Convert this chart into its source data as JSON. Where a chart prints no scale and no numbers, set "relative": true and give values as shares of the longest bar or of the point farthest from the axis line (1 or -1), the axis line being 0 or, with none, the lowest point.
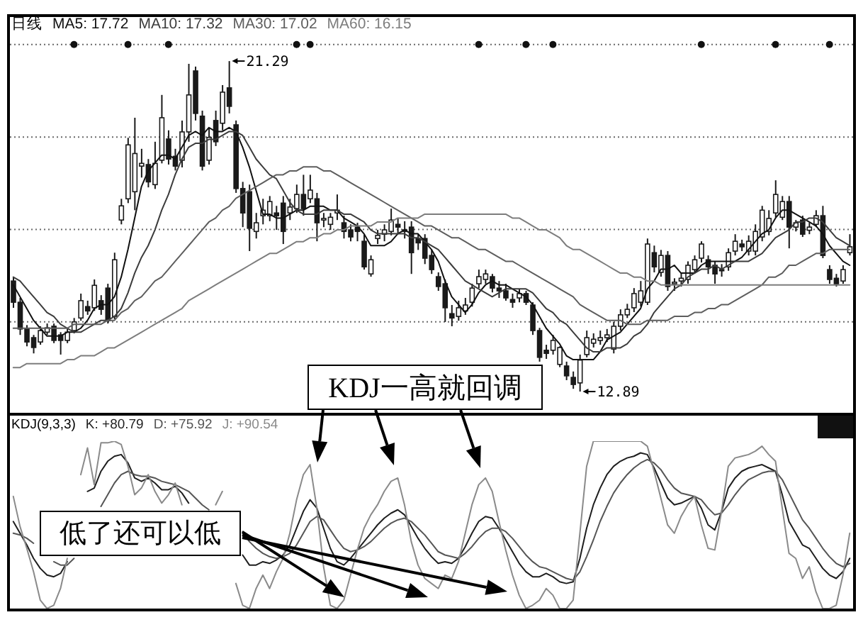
{
  "chart_data": [
    {
      "type": "candlestick",
      "title": "日线",
      "categories": [
        null,
        null,
        null,
        null,
        null,
        null,
        null,
        null,
        null,
        null,
        null,
        null,
        null,
        null,
        null,
        null,
        null,
        null,
        null,
        null,
        null,
        null,
        null,
        null,
        null,
        null,
        null,
        null,
        null,
        null,
        null,
        null,
        null,
        null,
        null,
        null,
        null,
        null,
        null,
        null,
        null,
        null,
        null,
        null,
        null,
        null,
        null,
        null,
        null,
        null,
        null,
        null,
        null,
        null,
        null,
        null,
        null,
        null,
        null,
        null,
        null,
        null,
        null,
        null,
        null,
        null,
        null,
        null,
        null,
        null,
        null,
        null,
        null,
        null,
        null,
        null,
        null,
        null,
        null,
        null,
        null,
        null,
        null,
        null,
        null,
        null,
        null,
        null,
        null,
        null,
        null,
        null,
        null,
        null,
        null,
        null,
        null,
        null,
        null,
        null,
        null,
        null,
        null,
        null,
        null,
        null,
        null,
        null,
        null,
        null,
        null,
        null,
        null,
        null,
        null,
        null,
        null,
        null,
        null,
        null,
        null,
        null,
        null,
        null,
        null
      ],
      "ohlc": [
        [
          15.7,
          15.81,
          15.02,
          15.16
        ],
        [
          15.16,
          15.27,
          14.33,
          14.48
        ],
        [
          14.48,
          14.58,
          14.04,
          14.15
        ],
        [
          14.26,
          14.33,
          13.86,
          14.01
        ],
        [
          14.15,
          14.55,
          14.08,
          14.44
        ],
        [
          14.4,
          14.62,
          14.33,
          14.51
        ],
        [
          14.55,
          14.62,
          14.12,
          14.19
        ],
        [
          14.33,
          14.4,
          13.83,
          14.19
        ],
        [
          14.19,
          14.51,
          14.12,
          14.4
        ],
        [
          14.44,
          14.76,
          14.37,
          14.66
        ],
        [
          14.76,
          15.38,
          14.69,
          15.2
        ],
        [
          15.05,
          15.2,
          14.84,
          14.94
        ],
        [
          15.02,
          15.74,
          14.94,
          15.59
        ],
        [
          15.2,
          15.34,
          14.84,
          14.98
        ],
        [
          15.52,
          15.63,
          14.62,
          14.69
        ],
        [
          14.8,
          16.42,
          14.73,
          16.24
        ],
        [
          17.25,
          17.79,
          17.14,
          17.61
        ],
        [
          17.79,
          19.34,
          17.68,
          19.16
        ],
        [
          17.97,
          19.85,
          17.5,
          18.94
        ],
        [
          18.62,
          19.06,
          18.33,
          18.69
        ],
        [
          18.66,
          18.8,
          18.08,
          18.22
        ],
        [
          18.15,
          19.24,
          18.04,
          18.69
        ],
        [
          18.77,
          20.43,
          18.69,
          19.85
        ],
        [
          19.31,
          19.53,
          18.66,
          18.8
        ],
        [
          18.87,
          19.06,
          18.51,
          18.62
        ],
        [
          18.77,
          19.78,
          18.59,
          19.49
        ],
        [
          19.49,
          21.22,
          19.24,
          20.43
        ],
        [
          21.04,
          21.15,
          19.78,
          19.96
        ],
        [
          19.89,
          20.03,
          18.51,
          18.62
        ],
        [
          18.77,
          19.6,
          18.66,
          19.35
        ],
        [
          19.78,
          20.03,
          19.13,
          19.24
        ],
        [
          19.71,
          20.68,
          19.53,
          20.5
        ],
        [
          20.61,
          21.29,
          19.96,
          20.14
        ],
        [
          19.67,
          19.78,
          17.94,
          18.05
        ],
        [
          18.05,
          18.22,
          17.07,
          17.43
        ],
        [
          17.97,
          18.15,
          16.46,
          17.04
        ],
        [
          16.96,
          17.43,
          16.78,
          17.18
        ],
        [
          17.36,
          17.79,
          17.14,
          17.5
        ],
        [
          17.36,
          17.86,
          17.22,
          17.72
        ],
        [
          17.43,
          17.61,
          17.0,
          17.36
        ],
        [
          17.68,
          17.86,
          16.64,
          16.96
        ],
        [
          17.43,
          17.79,
          17.25,
          17.58
        ],
        [
          17.54,
          18.15,
          17.43,
          17.9
        ],
        [
          17.9,
          18.4,
          17.36,
          17.54
        ],
        [
          17.79,
          18.4,
          17.68,
          18.01
        ],
        [
          17.79,
          17.94,
          16.71,
          17.18
        ],
        [
          17.25,
          17.43,
          17.07,
          17.29
        ],
        [
          17.14,
          17.43,
          17.0,
          17.32
        ],
        [
          17.43,
          17.9,
          17.25,
          17.5
        ],
        [
          17.18,
          17.36,
          16.78,
          16.96
        ],
        [
          17.0,
          17.14,
          16.71,
          16.82
        ],
        [
          17.07,
          17.18,
          16.71,
          16.96
        ],
        [
          16.71,
          16.89,
          15.99,
          16.06
        ],
        [
          15.88,
          16.35,
          15.81,
          16.24
        ],
        [
          16.78,
          17.0,
          16.64,
          16.86
        ],
        [
          16.89,
          17.14,
          16.71,
          17.0
        ],
        [
          16.96,
          17.54,
          16.86,
          17.25
        ],
        [
          17.14,
          17.29,
          16.89,
          17.07
        ],
        [
          17.0,
          17.22,
          16.78,
          16.96
        ],
        [
          17.07,
          17.22,
          15.88,
          16.42
        ],
        [
          16.78,
          16.89,
          16.49,
          16.67
        ],
        [
          16.78,
          16.89,
          16.13,
          16.28
        ],
        [
          16.35,
          16.49,
          15.88,
          15.99
        ],
        [
          15.81,
          15.92,
          15.45,
          15.56
        ],
        [
          15.63,
          15.74,
          14.66,
          15.02
        ],
        [
          14.87,
          15.09,
          14.55,
          14.76
        ],
        [
          14.8,
          15.2,
          14.69,
          15.02
        ],
        [
          14.94,
          15.27,
          14.84,
          15.09
        ],
        [
          15.16,
          15.63,
          15.05,
          15.52
        ],
        [
          15.63,
          15.99,
          15.52,
          15.81
        ],
        [
          15.74,
          15.99,
          15.63,
          15.88
        ],
        [
          15.81,
          15.88,
          15.41,
          15.52
        ],
        [
          15.52,
          15.7,
          15.27,
          15.45
        ],
        [
          15.45,
          15.63,
          15.2,
          15.27
        ],
        [
          15.23,
          15.38,
          15.02,
          15.16
        ],
        [
          15.27,
          15.49,
          15.16,
          15.38
        ],
        [
          15.38,
          15.45,
          15.09,
          15.16
        ],
        [
          15.09,
          15.16,
          14.33,
          14.44
        ],
        [
          14.44,
          14.51,
          13.65,
          13.76
        ],
        [
          13.94,
          14.08,
          13.72,
          13.86
        ],
        [
          13.94,
          14.33,
          13.83,
          14.19
        ],
        [
          13.58,
          14.04,
          13.51,
          14.01
        ],
        [
          13.54,
          13.65,
          13.18,
          13.29
        ],
        [
          13.25,
          13.4,
          12.96,
          13.07
        ],
        [
          13.11,
          13.83,
          12.89,
          13.69
        ],
        [
          13.83,
          14.44,
          13.76,
          14.26
        ],
        [
          14.12,
          14.37,
          14.01,
          14.22
        ],
        [
          14.19,
          14.44,
          14.08,
          14.26
        ],
        [
          14.26,
          14.48,
          14.15,
          14.33
        ],
        [
          13.97,
          14.66,
          13.86,
          14.55
        ],
        [
          14.55,
          14.98,
          14.44,
          14.84
        ],
        [
          14.84,
          15.12,
          14.76,
          14.98
        ],
        [
          15.02,
          15.52,
          14.91,
          15.38
        ],
        [
          15.16,
          15.7,
          15.05,
          15.45
        ],
        [
          15.16,
          16.78,
          15.09,
          16.64
        ],
        [
          16.42,
          16.6,
          15.92,
          16.06
        ],
        [
          15.92,
          16.49,
          15.81,
          16.35
        ],
        [
          16.35,
          16.46,
          15.45,
          15.56
        ],
        [
          15.63,
          15.77,
          15.45,
          15.67
        ],
        [
          15.7,
          15.92,
          15.56,
          15.77
        ],
        [
          15.74,
          16.2,
          15.63,
          16.1
        ],
        [
          15.99,
          16.35,
          15.92,
          16.24
        ],
        [
          16.28,
          16.71,
          16.17,
          16.64
        ],
        [
          16.24,
          16.35,
          15.88,
          16.06
        ],
        [
          16.1,
          16.2,
          15.63,
          15.88
        ],
        [
          15.99,
          16.13,
          15.81,
          15.96
        ],
        [
          16.06,
          16.53,
          15.96,
          16.42
        ],
        [
          16.46,
          16.89,
          16.35,
          16.71
        ],
        [
          16.64,
          16.75,
          16.46,
          16.57
        ],
        [
          16.46,
          16.86,
          16.35,
          16.71
        ],
        [
          16.46,
          17.14,
          16.35,
          16.96
        ],
        [
          16.82,
          17.61,
          16.71,
          17.5
        ],
        [
          16.96,
          17.5,
          16.86,
          17.29
        ],
        [
          17.43,
          18.26,
          17.32,
          17.9
        ],
        [
          17.32,
          17.86,
          17.25,
          17.72
        ],
        [
          17.72,
          17.86,
          16.53,
          17.07
        ],
        [
          17.07,
          17.25,
          16.96,
          17.18
        ],
        [
          17.25,
          17.36,
          16.82,
          16.89
        ],
        [
          16.99,
          17.18,
          16.89,
          17.07
        ],
        [
          17.14,
          17.5,
          17.07,
          17.36
        ],
        [
          17.36,
          17.61,
          16.28,
          16.35
        ],
        [
          15.99,
          16.1,
          15.63,
          15.74
        ],
        [
          15.77,
          15.88,
          15.56,
          15.63
        ],
        [
          15.7,
          16.1,
          15.63,
          15.99
        ],
        [
          16.42,
          16.89,
          16.35,
          16.57
        ]
      ],
      "color": "#1a1a1a",
      "series": [
        {
          "name": "MA5: 17.72",
          "type": "line",
          "color": "#111111",
          "values": [
            15.6,
            15.3,
            15.0,
            14.7,
            14.5,
            14.3,
            14.3,
            14.3,
            14.4,
            14.4,
            14.5,
            14.7,
            15.0,
            15.1,
            15.1,
            15.3,
            15.8,
            16.5,
            17.3,
            18.1,
            18.5,
            18.7,
            18.9,
            18.9,
            18.8,
            19.1,
            19.4,
            19.5,
            19.4,
            19.6,
            19.5,
            19.5,
            19.6,
            19.5,
            19.1,
            18.6,
            18.0,
            17.4,
            17.4,
            17.3,
            17.3,
            17.4,
            17.5,
            17.5,
            17.6,
            17.6,
            17.6,
            17.5,
            17.5,
            17.3,
            17.2,
            17.1,
            16.9,
            16.6,
            16.6,
            16.6,
            16.7,
            16.9,
            17.0,
            16.9,
            16.9,
            16.7,
            16.5,
            16.2,
            15.7,
            15.3,
            15.1,
            14.9,
            15.1,
            15.4,
            15.6,
            15.7,
            15.6,
            15.6,
            15.5,
            15.4,
            15.3,
            15.1,
            14.8,
            14.5,
            14.3,
            14.1,
            13.8,
            13.7,
            13.7,
            13.7,
            13.7,
            13.9,
            14.2,
            14.3,
            14.4,
            14.6,
            14.8,
            15.0,
            15.5,
            15.7,
            16.0,
            16.0,
            16.1,
            15.9,
            15.9,
            15.9,
            16.1,
            16.2,
            16.2,
            16.2,
            16.2,
            16.2,
            16.3,
            16.5,
            16.7,
            16.9,
            17.0,
            17.3,
            17.5,
            17.5,
            17.4,
            17.3,
            17.2,
            17.1,
            16.9,
            16.6,
            16.4,
            16.2,
            16.1
          ]
        },
        {
          "name": "MA10: 17.32",
          "type": "line",
          "color": "#3c3c3c",
          "values": [
            15.8,
            15.7,
            15.5,
            15.3,
            15.1,
            14.9,
            14.8,
            14.6,
            14.5,
            14.4,
            14.4,
            14.5,
            14.6,
            14.7,
            14.7,
            14.8,
            15.0,
            15.4,
            15.9,
            16.3,
            16.6,
            17.0,
            17.5,
            17.9,
            18.4,
            18.8,
            19.1,
            19.2,
            19.2,
            19.3,
            19.3,
            19.4,
            19.5,
            19.5,
            19.4,
            19.1,
            18.8,
            18.6,
            18.4,
            18.3,
            18.0,
            17.7,
            17.5,
            17.4,
            17.4,
            17.4,
            17.5,
            17.5,
            17.5,
            17.4,
            17.4,
            17.3,
            17.2,
            17.0,
            16.9,
            16.9,
            16.9,
            16.9,
            16.9,
            16.8,
            16.8,
            16.7,
            16.6,
            16.5,
            16.3,
            16.1,
            15.9,
            15.7,
            15.6,
            15.5,
            15.4,
            15.3,
            15.4,
            15.5,
            15.5,
            15.5,
            15.5,
            15.4,
            15.2,
            15.0,
            14.9,
            14.7,
            14.6,
            14.4,
            14.2,
            14.0,
            13.9,
            13.9,
            14.0,
            14.0,
            14.0,
            14.1,
            14.3,
            14.4,
            14.6,
            14.9,
            15.1,
            15.3,
            15.5,
            15.6,
            15.8,
            15.9,
            16.0,
            16.0,
            16.1,
            16.0,
            16.1,
            16.2,
            16.2,
            16.2,
            16.3,
            16.4,
            16.6,
            16.8,
            16.9,
            17.0,
            17.2,
            17.2,
            17.3,
            17.3,
            17.2,
            17.0,
            16.8,
            16.7,
            16.6
          ]
        },
        {
          "name": "MA30: 17.02",
          "type": "line",
          "color": "#5e5e5e",
          "values": [
            14.5,
            14.5,
            14.5,
            14.5,
            14.5,
            14.5,
            14.5,
            14.5,
            14.5,
            14.6,
            14.6,
            14.6,
            14.6,
            14.6,
            14.7,
            14.7,
            14.9,
            15.0,
            15.2,
            15.3,
            15.5,
            15.7,
            15.8,
            16.0,
            16.2,
            16.4,
            16.6,
            16.8,
            17.0,
            17.2,
            17.3,
            17.5,
            17.6,
            17.8,
            17.9,
            18.0,
            18.1,
            18.2,
            18.3,
            18.4,
            18.4,
            18.5,
            18.5,
            18.6,
            18.6,
            18.6,
            18.5,
            18.5,
            18.4,
            18.3,
            18.2,
            18.1,
            18.0,
            17.9,
            17.8,
            17.7,
            17.6,
            17.5,
            17.4,
            17.3,
            17.2,
            17.1,
            17.1,
            17.0,
            16.9,
            16.8,
            16.8,
            16.7,
            16.6,
            16.5,
            16.5,
            16.4,
            16.3,
            16.2,
            16.2,
            16.1,
            16.0,
            15.9,
            15.8,
            15.7,
            15.6,
            15.5,
            15.4,
            15.3,
            15.1,
            15.0,
            14.9,
            14.8,
            14.7,
            14.7,
            14.7,
            14.6,
            14.6,
            14.6,
            14.7,
            14.7,
            14.7,
            14.7,
            14.8,
            14.8,
            14.8,
            14.9,
            14.9,
            15.0,
            15.0,
            15.1,
            15.1,
            15.2,
            15.3,
            15.4,
            15.5,
            15.6,
            15.8,
            15.8,
            15.9,
            16.1,
            16.1,
            16.2,
            16.3,
            16.4,
            16.4,
            16.5,
            16.5,
            16.5,
            16.5
          ]
        },
        {
          "name": "MA60: 16.15",
          "type": "line",
          "color": "#7d7d7d",
          "values": [
            13.5,
            13.5,
            13.6,
            13.6,
            13.6,
            13.6,
            13.6,
            13.6,
            13.7,
            13.7,
            13.8,
            13.8,
            13.8,
            13.9,
            14.0,
            14.0,
            14.1,
            14.2,
            14.3,
            14.4,
            14.5,
            14.6,
            14.7,
            14.8,
            14.9,
            15.0,
            15.2,
            15.3,
            15.4,
            15.5,
            15.6,
            15.7,
            15.8,
            15.9,
            16.0,
            16.1,
            16.2,
            16.3,
            16.4,
            16.4,
            16.5,
            16.6,
            16.7,
            16.7,
            16.8,
            16.8,
            16.9,
            16.9,
            17.0,
            17.0,
            17.1,
            17.1,
            17.1,
            17.1,
            17.2,
            17.2,
            17.2,
            17.3,
            17.3,
            17.3,
            17.3,
            17.4,
            17.4,
            17.4,
            17.4,
            17.4,
            17.4,
            17.4,
            17.4,
            17.4,
            17.4,
            17.4,
            17.4,
            17.4,
            17.3,
            17.3,
            17.2,
            17.1,
            17.0,
            17.0,
            16.9,
            16.8,
            16.6,
            16.5,
            16.5,
            16.4,
            16.3,
            16.2,
            16.1,
            16.0,
            15.9,
            15.9,
            15.8,
            15.8,
            15.7,
            15.7,
            15.6,
            15.6,
            15.6,
            15.6,
            15.6,
            15.6,
            15.6,
            15.6,
            15.6,
            15.6,
            15.6,
            15.6,
            15.6,
            15.6,
            15.6,
            15.6,
            15.6,
            15.6,
            15.6,
            15.6,
            15.6,
            15.6,
            15.6,
            15.6,
            15.6,
            15.6,
            15.6,
            15.6,
            15.6
          ]
        },
        {
          "type": "scatter",
          "color": "#111111",
          "marker": "circle",
          "values": [
            null,
            null,
            null,
            null,
            null,
            null,
            null,
            null,
            null,
            21.71,
            null,
            null,
            null,
            null,
            null,
            null,
            null,
            21.71,
            null,
            null,
            null,
            null,
            null,
            21.71,
            null,
            null,
            null,
            null,
            null,
            null,
            null,
            null,
            null,
            null,
            null,
            null,
            null,
            null,
            null,
            null,
            null,
            null,
            21.71,
            null,
            21.71,
            null,
            null,
            null,
            null,
            null,
            null,
            null,
            null,
            null,
            null,
            null,
            null,
            null,
            null,
            null,
            null,
            null,
            null,
            null,
            null,
            null,
            null,
            null,
            null,
            21.71,
            null,
            null,
            null,
            null,
            null,
            null,
            21.71,
            null,
            null,
            null,
            21.71,
            null,
            null,
            null,
            null,
            null,
            null,
            null,
            null,
            null,
            null,
            null,
            null,
            null,
            null,
            null,
            null,
            null,
            null,
            null,
            null,
            null,
            21.71,
            null,
            null,
            null,
            null,
            null,
            null,
            null,
            null,
            null,
            null,
            21.71,
            null,
            null,
            null,
            null,
            null,
            null,
            null,
            21.71,
            null,
            null,
            null
          ]
        }
      ],
      "ylim": [
        12.35,
        22.41
      ],
      "yticks": [
        {
          "value": 14.66,
          "label": null
        },
        {
          "value": 17.01,
          "label": null
        },
        {
          "value": 19.36,
          "label": null
        },
        {
          "value": 21.71,
          "label": null
        }
      ],
      "grid": "y",
      "tick_labels": false,
      "legend": "top left",
      "annotations": [
        "21.29",
        "12.89"
      ]
    },
    {
      "type": "line",
      "title": "KDJ(9,3,3)",
      "relative": true,
      "tick_labels": false,
      "categories": [
        null,
        null,
        null,
        null,
        null,
        null,
        null,
        null,
        null,
        null,
        null,
        null,
        null,
        null,
        null,
        null,
        null,
        null,
        null,
        null,
        null,
        null,
        null,
        null,
        null,
        null,
        null,
        null,
        null,
        null,
        null,
        null,
        null,
        null,
        null,
        null,
        null,
        null,
        null,
        null,
        null,
        null,
        null,
        null,
        null,
        null,
        null,
        null,
        null,
        null,
        null,
        null,
        null,
        null,
        null,
        null,
        null,
        null,
        null,
        null,
        null,
        null,
        null,
        null,
        null,
        null,
        null,
        null,
        null,
        null,
        null,
        null,
        null,
        null,
        null,
        null,
        null,
        null,
        null,
        null,
        null,
        null,
        null,
        null,
        null,
        null,
        null,
        null,
        null,
        null,
        null,
        null,
        null,
        null,
        null,
        null,
        null,
        null,
        null,
        null,
        null,
        null,
        null,
        null,
        null,
        null,
        null,
        null,
        null,
        null,
        null,
        null,
        null,
        null,
        null,
        null,
        null,
        null,
        null,
        null,
        null,
        null,
        null,
        null,
        null
      ],
      "series": [
        {
          "name": "K: +80.79",
          "color": "#1e1e1e",
          "values": [
            0.52,
            0.45,
            0.38,
            0.3,
            0.24,
            0.2,
            0.19,
            0.21,
            0.28,
            null,
            null,
            0.7,
            0.72,
            0.82,
            0.88,
            0.91,
            0.92,
            0.87,
            0.78,
            0.76,
            0.78,
            0.75,
            0.71,
            0.71,
            0.73,
            0.69,
            0.63,
            null,
            null,
            null,
            null,
            null,
            null,
            null,
            0.32,
            0.26,
            0.26,
            0.28,
            0.27,
            0.29,
            0.32,
            0.38,
            0.48,
            0.58,
            0.65,
            0.6,
            0.48,
            0.36,
            0.28,
            0.26,
            0.3,
            0.35,
            0.4,
            0.45,
            0.5,
            0.54,
            0.57,
            0.59,
            0.56,
            0.49,
            0.42,
            0.36,
            0.31,
            0.27,
            0.28,
            0.27,
            0.3,
            0.37,
            0.45,
            0.52,
            0.55,
            0.54,
            0.48,
            0.41,
            0.34,
            0.27,
            0.22,
            0.19,
            0.19,
            0.21,
            0.19,
            0.16,
            0.15,
            0.16,
            0.3,
            0.48,
            0.62,
            0.72,
            0.8,
            0.85,
            0.88,
            0.9,
            0.91,
            0.93,
            0.92,
            0.84,
            0.75,
            0.66,
            0.62,
            0.63,
            0.65,
            0.67,
            0.6,
            0.5,
            0.47,
            0.58,
            0.72,
            0.78,
            0.82,
            0.84,
            0.85,
            0.86,
            0.84,
            0.82,
            0.68,
            0.52,
            0.45,
            0.38,
            0.36,
            0.3,
            0.24,
            0.2,
            0.18,
            0.22,
            0.3
          ]
        },
        {
          "name": "D: +75.92",
          "color": "#555555",
          "values": [
            0.45,
            0.44,
            0.42,
            0.39,
            null,
            null,
            0.28,
            0.26,
            0.26,
            0.3,
            null,
            null,
            null,
            0.61,
            0.68,
            0.75,
            0.8,
            0.82,
            0.8,
            0.79,
            0.79,
            0.78,
            0.76,
            0.75,
            0.74,
            0.72,
            0.7,
            0.66,
            0.62,
            0.59,
            null,
            null,
            null,
            null,
            0.46,
            0.4,
            0.36,
            0.33,
            0.31,
            0.3,
            0.31,
            0.33,
            0.38,
            0.45,
            0.52,
            0.55,
            0.53,
            0.47,
            0.41,
            0.36,
            0.34,
            0.35,
            0.37,
            0.4,
            0.44,
            0.48,
            0.51,
            0.53,
            0.54,
            0.52,
            0.48,
            0.44,
            0.39,
            0.34,
            0.32,
            0.31,
            0.3,
            0.33,
            0.37,
            0.42,
            0.46,
            0.48,
            0.48,
            0.46,
            0.42,
            0.37,
            0.32,
            0.28,
            0.25,
            0.24,
            0.22,
            0.2,
            0.18,
            0.17,
            0.22,
            0.31,
            0.41,
            0.52,
            0.61,
            0.69,
            0.75,
            0.8,
            0.84,
            0.87,
            0.89,
            0.87,
            0.83,
            0.77,
            0.72,
            0.69,
            0.68,
            0.67,
            0.65,
            0.6,
            0.56,
            0.57,
            0.62,
            0.68,
            0.73,
            0.77,
            0.79,
            0.81,
            0.82,
            0.82,
            0.77,
            0.69,
            0.61,
            0.53,
            0.48,
            0.42,
            0.36,
            0.31,
            0.27,
            0.25,
            0.27
          ]
        },
        {
          "name": "J: +90.54",
          "color": "#8a8a8a",
          "values": [
            0.67,
            0.49,
            0.36,
            0.22,
            0.05,
            0,
            0.02,
            0.12,
            0.3,
            null,
            0.8,
            0.96,
            0.74,
            0.99,
            0.99,
            1,
            0.98,
            0.85,
            0.68,
            0.72,
            0.8,
            0.7,
            0.63,
            0.68,
            0.75,
            0.62,
            null,
            null,
            null,
            null,
            0.62,
            0.7,
            null,
            0.15,
            0.02,
            0,
            0.12,
            0.2,
            0.12,
            0.22,
            0.3,
            0.45,
            0.65,
            0.8,
            0.86,
            0.6,
            0.25,
            0.02,
            0,
            0.05,
            0.2,
            0.35,
            0.48,
            0.56,
            0.62,
            0.7,
            0.76,
            0.78,
            0.62,
            0.4,
            0.26,
            0.18,
            0.15,
            0.12,
            0.2,
            0.18,
            0.28,
            0.45,
            0.62,
            0.74,
            0.78,
            0.7,
            0.52,
            0.35,
            0.2,
            0.08,
            0,
            0.02,
            0.05,
            0.12,
            0.08,
            0,
            0,
            0.05,
            0.45,
            0.85,
            1,
            1,
            1,
            1,
            1,
            1,
            1,
            1,
            0.97,
            0.82,
            0.66,
            0.5,
            0.45,
            0.55,
            0.62,
            0.67,
            0.5,
            0.36,
            0.35,
            0.58,
            0.85,
            0.9,
            0.91,
            0.92,
            0.94,
            0.97,
            0.92,
            0.88,
            0.6,
            0.33,
            0.3,
            0.18,
            0.25,
            0.1,
            0,
            0,
            0.02,
            0.2,
            0.45
          ]
        }
      ],
      "legend": "top left",
      "annotations": [
        "KDJ一高就回调",
        "低了还可以低"
      ]
    }
  ]
}
